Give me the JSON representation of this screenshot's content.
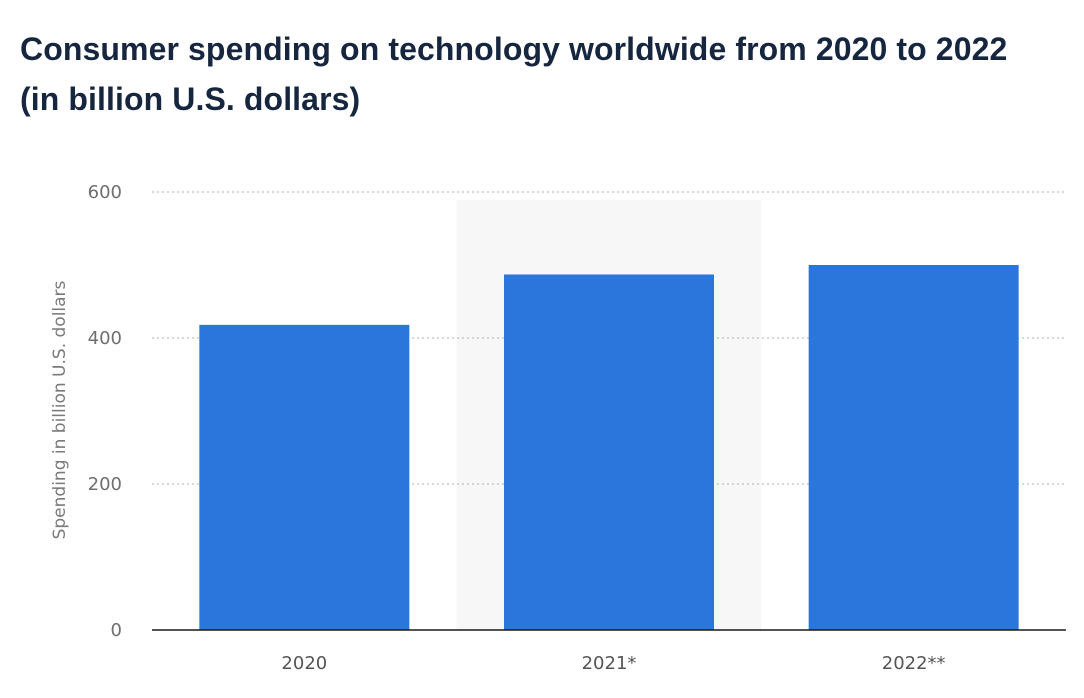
{
  "chart_data": {
    "type": "bar",
    "title": "Consumer spending on technology worldwide from 2020 to 2022",
    "subtitle": "(in billion U.S. dollars)",
    "categories": [
      "2020",
      "2021*",
      "2022**"
    ],
    "values": [
      418,
      487,
      500
    ],
    "xlabel": "",
    "ylabel": "Spending in billion U.S. dollars",
    "ylim": [
      0,
      600
    ],
    "yticks": [
      0,
      200,
      400,
      600
    ],
    "grid": true,
    "highlighted_category": "2021*",
    "bar_color": "#2a76dd",
    "highlight_color": "#f7f7f7",
    "grid_color": "#bfbfbf",
    "axis_color": "#1a1a1a"
  }
}
